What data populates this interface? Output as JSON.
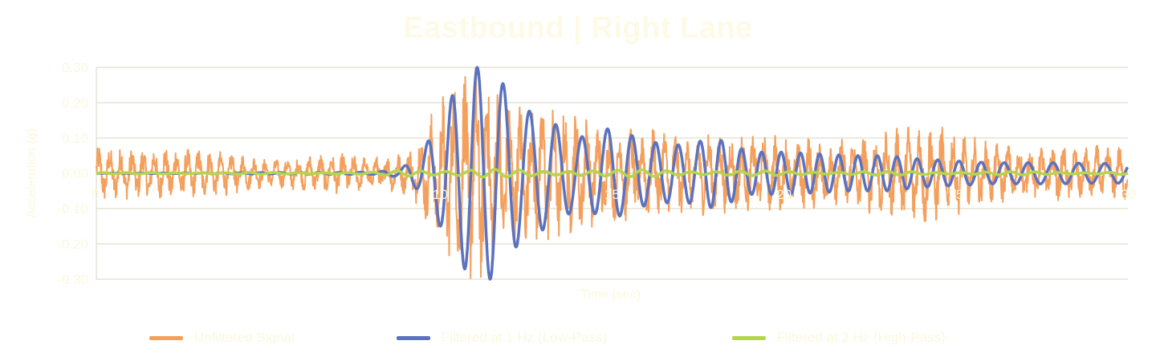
{
  "chart_data": {
    "type": "line",
    "title": "Eastbound | Right Lane",
    "xlabel": "Time (sec)",
    "ylabel": "Acceleration (g)",
    "xlim": [
      0,
      30
    ],
    "ylim": [
      -0.3,
      0.3
    ],
    "xticks": [
      {
        "value": 0,
        "label": "0"
      },
      {
        "value": 10,
        "label": "10"
      },
      {
        "value": 15,
        "label": "15"
      },
      {
        "value": 20,
        "label": "20"
      },
      {
        "value": 25,
        "label": "25"
      },
      {
        "value": 30,
        "label": "30"
      }
    ],
    "yticks": [
      {
        "value": 0.3,
        "label": "0.30"
      },
      {
        "value": 0.2,
        "label": "0.20"
      },
      {
        "value": 0.1,
        "label": "0.10"
      },
      {
        "value": 0,
        "label": "0.00"
      },
      {
        "value": -0.1,
        "label": "-0.10"
      },
      {
        "value": -0.2,
        "label": "-0.20"
      },
      {
        "value": -0.3,
        "label": "-0.30"
      }
    ],
    "grid": true,
    "legend_position": "bottom",
    "series": [
      {
        "name": "Unfiltered Signal",
        "color": "#f4a05c",
        "envelope": {
          "x": [
            0,
            1,
            2,
            3,
            4,
            5,
            6,
            7,
            8,
            9,
            9.5,
            10,
            10.5,
            11,
            11.5,
            12,
            12.5,
            13,
            13.5,
            14,
            14.5,
            15,
            16,
            17,
            18,
            19,
            20,
            21,
            22,
            23,
            24,
            25,
            26,
            27,
            28,
            29,
            30
          ],
          "amplitude": [
            0.08,
            0.075,
            0.08,
            0.07,
            0.06,
            0.04,
            0.05,
            0.06,
            0.05,
            0.06,
            0.13,
            0.22,
            0.3,
            0.32,
            0.3,
            0.22,
            0.2,
            0.2,
            0.19,
            0.18,
            0.16,
            0.14,
            0.14,
            0.12,
            0.12,
            0.11,
            0.11,
            0.11,
            0.11,
            0.12,
            0.16,
            0.12,
            0.09,
            0.08,
            0.08,
            0.08,
            0.08
          ]
        }
      },
      {
        "name": "Filtered at 1 Hz (Low-Pass)",
        "color": "#5b72c0",
        "envelope": {
          "x": [
            0,
            8,
            8.8,
            9.4,
            10,
            10.5,
            11,
            11.5,
            12,
            12.5,
            13,
            14,
            15,
            16,
            17,
            18,
            19,
            20,
            21,
            22,
            23,
            24,
            25,
            26,
            27,
            28,
            29,
            30
          ],
          "amplitude": [
            0,
            0.003,
            0.01,
            0.05,
            0.15,
            0.25,
            0.3,
            0.3,
            0.23,
            0.18,
            0.16,
            0.1,
            0.13,
            0.09,
            0.08,
            0.1,
            0.06,
            0.06,
            0.055,
            0.05,
            0.05,
            0.04,
            0.035,
            0.03,
            0.03,
            0.03,
            0.028,
            0.028
          ]
        }
      },
      {
        "name": "Filtered at 2 Hz (High-Pass)",
        "color": "#b5d64a",
        "envelope": {
          "x": [
            0,
            8,
            9,
            10,
            11,
            12,
            13,
            14,
            15,
            17,
            20,
            25,
            30
          ],
          "amplitude": [
            0.002,
            0.003,
            0.01,
            0.012,
            0.015,
            0.01,
            0.008,
            0.015,
            0.01,
            0.01,
            0.006,
            0.005,
            0.004
          ]
        }
      }
    ]
  }
}
